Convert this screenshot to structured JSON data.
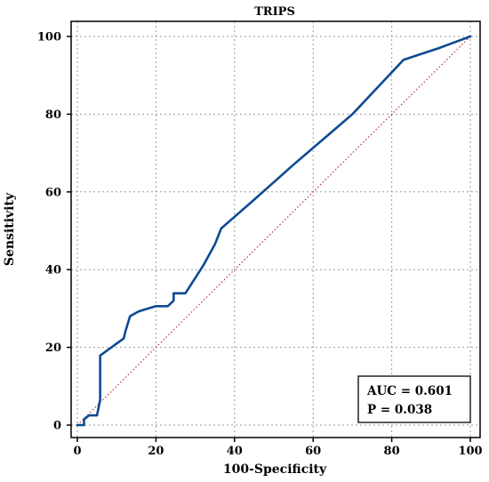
{
  "chart_data": {
    "type": "line",
    "title": "TRIPS",
    "xlabel": "100-Specificity",
    "ylabel": "Sensitivity",
    "xlim": [
      0,
      100
    ],
    "ylim": [
      0,
      100
    ],
    "xticks": [
      "0",
      "20",
      "40",
      "60",
      "80",
      "100"
    ],
    "yticks": [
      "0",
      "20",
      "40",
      "60",
      "80",
      "100"
    ],
    "grid": true,
    "series": [
      {
        "color": "#0e4a93",
        "x": [
          0,
          1.7,
          1.7,
          3.0,
          5.0,
          5.5,
          5.8,
          5.8,
          11.8,
          12.2,
          13.4,
          15.5,
          17.0,
          20.0,
          23.0,
          24.5,
          24.5,
          27.5,
          32.0,
          35.0,
          36.6,
          45.0,
          55.0,
          70.0,
          83.0,
          92.0,
          100.0
        ],
        "y": [
          0,
          0,
          1.5,
          2.5,
          2.5,
          5.0,
          6.5,
          17.9,
          22.3,
          24.0,
          28.0,
          29.2,
          29.7,
          30.6,
          30.6,
          32.0,
          33.9,
          33.9,
          41.0,
          46.5,
          50.6,
          58.0,
          67.0,
          80.0,
          94.0,
          97.0,
          100.0
        ]
      },
      {
        "color": "#b53a3a",
        "style": "dotted",
        "x": [
          0,
          100
        ],
        "y": [
          0,
          100
        ]
      }
    ],
    "annotations": {
      "auc": "AUC = 0.601",
      "p": "P = 0.038"
    },
    "legend_placement": "bottom-right"
  }
}
